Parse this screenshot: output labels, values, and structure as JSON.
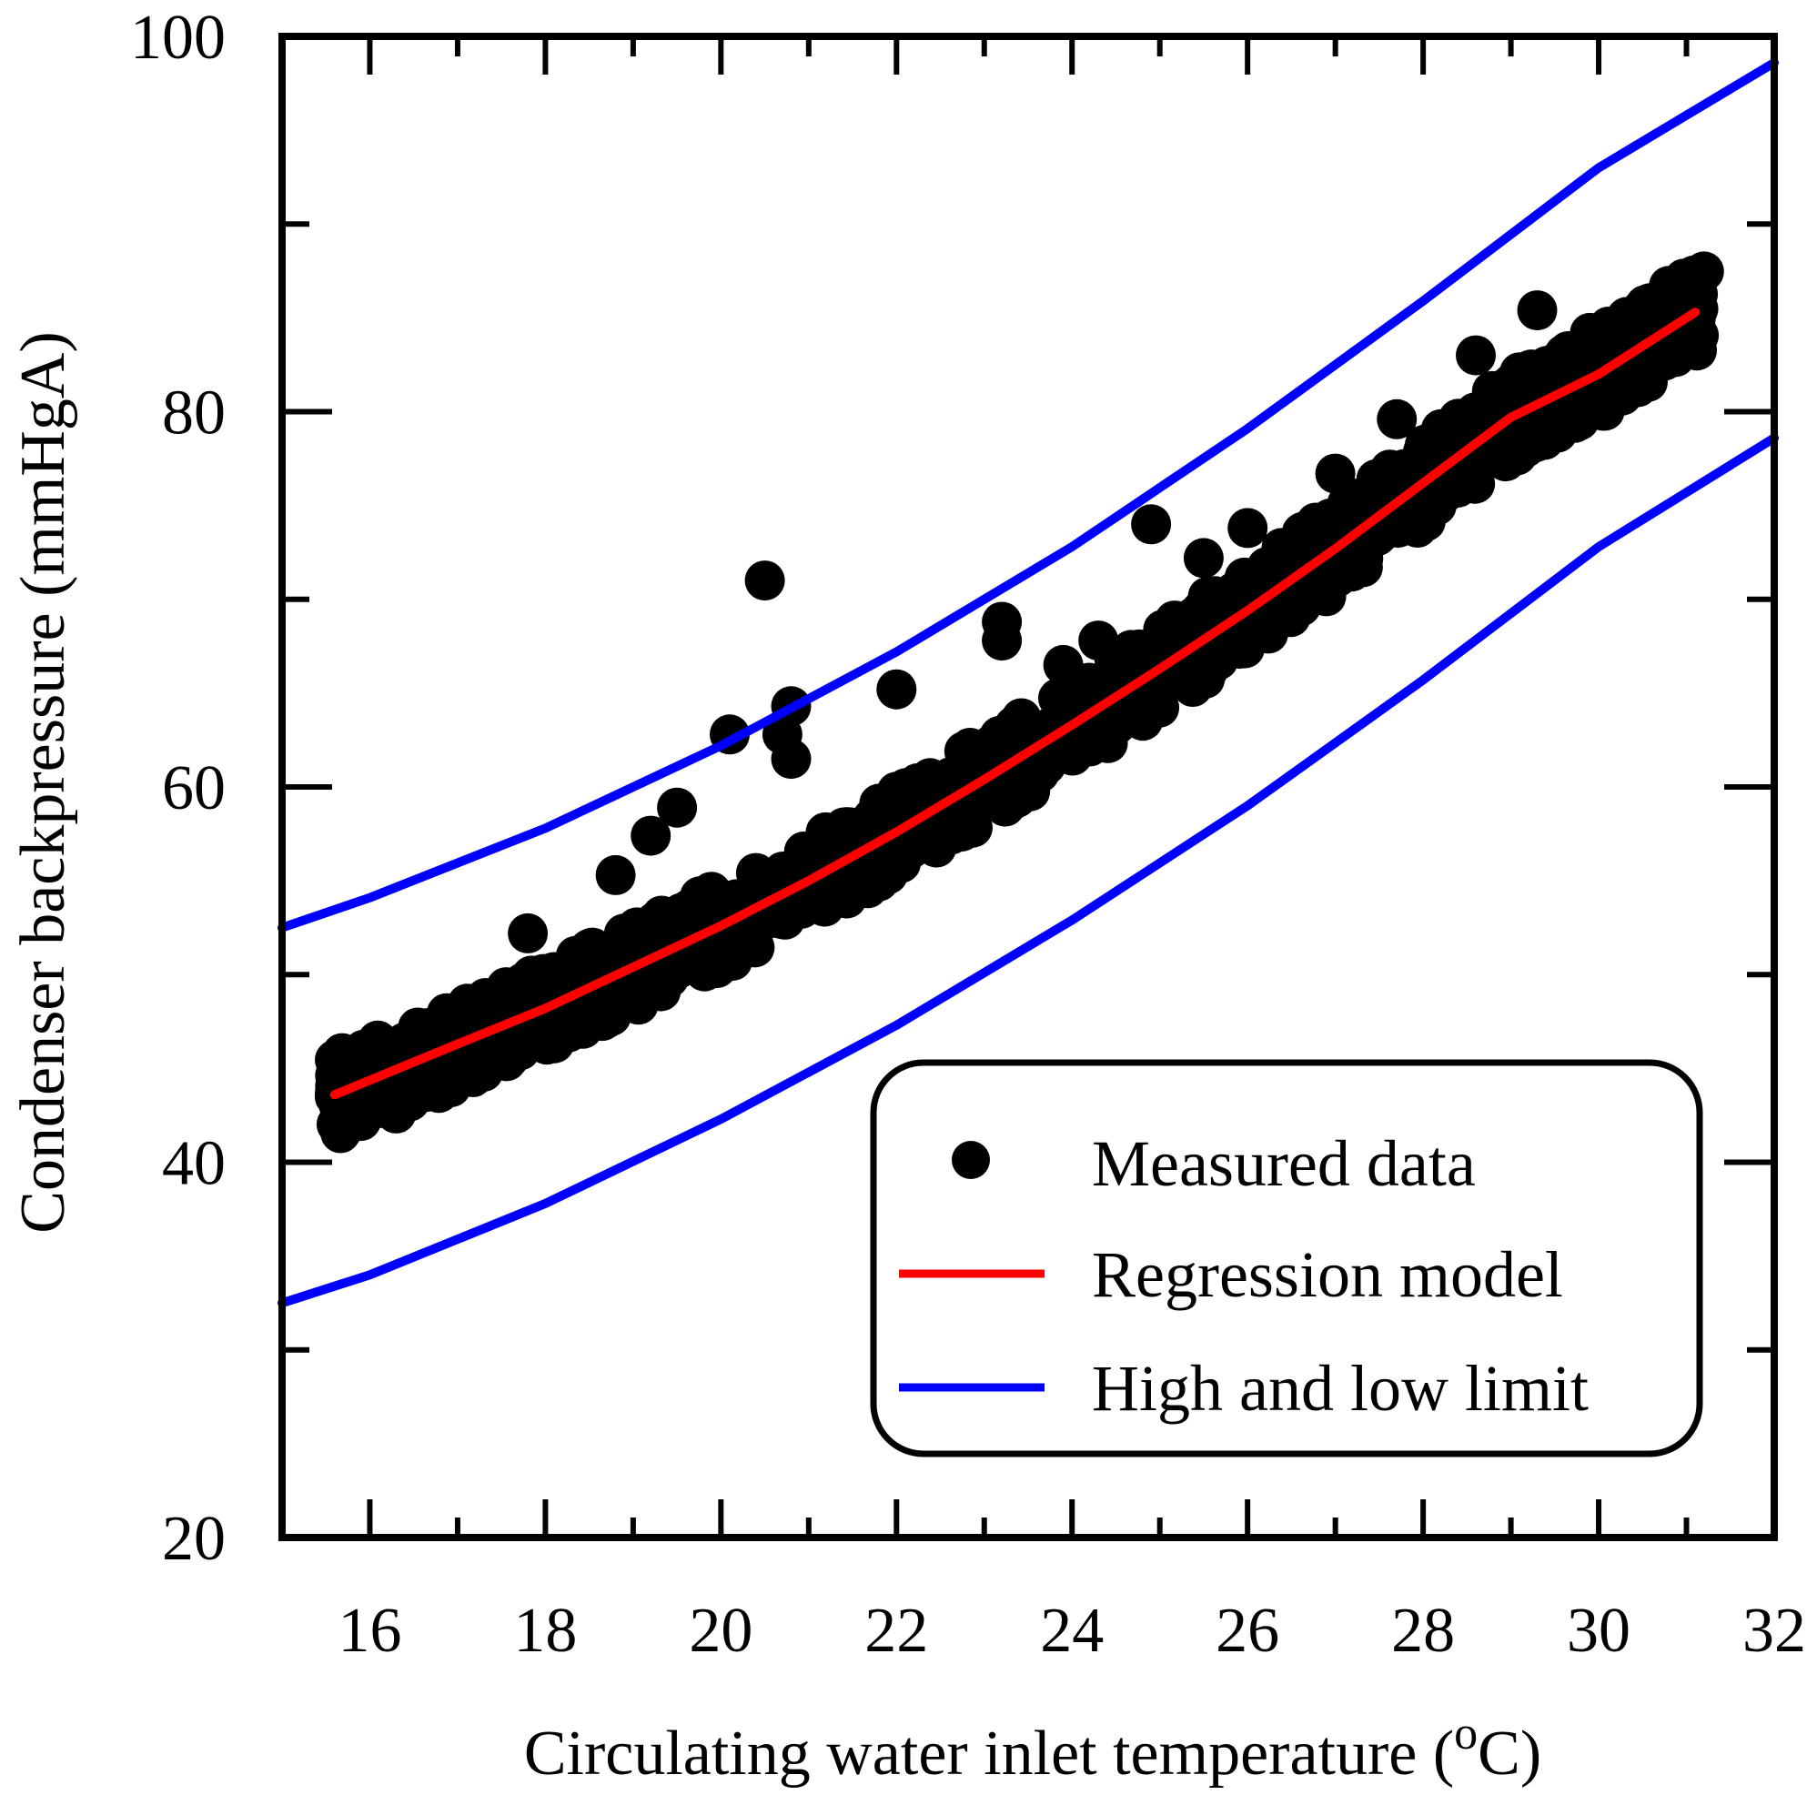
{
  "chart_data": {
    "type": "scatter",
    "title": "",
    "xlabel": "Circulating water inlet temperature (",
    "xlabel_sup": "o",
    "xlabel_end": "C)",
    "ylabel": "Condenser backpressure (mmHgA)",
    "xlim": [
      15,
      32
    ],
    "ylim": [
      20,
      100
    ],
    "x_ticks": [
      16,
      18,
      20,
      22,
      24,
      26,
      28,
      30,
      32
    ],
    "y_ticks": [
      20,
      40,
      60,
      80,
      100
    ],
    "grid": false,
    "legend_position": "bottom-right",
    "series": [
      {
        "name": "Measured data",
        "kind": "scatter",
        "color": "#000000",
        "band_lo_offset": -2.2,
        "band_hi_offset": 2.2,
        "x_range": [
          15.6,
          31.2
        ],
        "n_points": 900,
        "outliers": [
          {
            "x": 20.5,
            "y": 71.0
          },
          {
            "x": 24.9,
            "y": 74.0
          },
          {
            "x": 23.2,
            "y": 68.8
          },
          {
            "x": 23.2,
            "y": 67.8
          },
          {
            "x": 22.0,
            "y": 65.2
          },
          {
            "x": 20.8,
            "y": 64.3
          },
          {
            "x": 20.1,
            "y": 62.8
          },
          {
            "x": 20.7,
            "y": 62.8
          },
          {
            "x": 20.8,
            "y": 61.5
          },
          {
            "x": 19.5,
            "y": 58.9
          },
          {
            "x": 19.2,
            "y": 57.4
          },
          {
            "x": 18.8,
            "y": 55.3
          },
          {
            "x": 17.8,
            "y": 52.2
          },
          {
            "x": 16.8,
            "y": 47.4
          },
          {
            "x": 16.1,
            "y": 45.8
          },
          {
            "x": 28.6,
            "y": 83.0
          },
          {
            "x": 29.3,
            "y": 85.4
          },
          {
            "x": 30.5,
            "y": 85.5
          },
          {
            "x": 30.8,
            "y": 86.7
          },
          {
            "x": 31.1,
            "y": 85.5
          },
          {
            "x": 29.9,
            "y": 84.2
          },
          {
            "x": 29.1,
            "y": 82.1
          },
          {
            "x": 27.7,
            "y": 79.6
          },
          {
            "x": 27.0,
            "y": 76.7
          },
          {
            "x": 26.0,
            "y": 73.8
          },
          {
            "x": 25.5,
            "y": 72.2
          },
          {
            "x": 24.3,
            "y": 67.8
          },
          {
            "x": 23.9,
            "y": 66.5
          },
          {
            "x": 30.2,
            "y": 81.3
          },
          {
            "x": 29.9,
            "y": 80.1
          },
          {
            "x": 15.6,
            "y": 43.5
          },
          {
            "x": 15.9,
            "y": 42.2
          },
          {
            "x": 16.3,
            "y": 42.6
          }
        ]
      },
      {
        "name": "Regression model",
        "kind": "line",
        "color": "#ff0000",
        "points": [
          {
            "x": 15.6,
            "y": 43.6
          },
          {
            "x": 17.0,
            "y": 46.3
          },
          {
            "x": 18.0,
            "y": 48.2
          },
          {
            "x": 19.0,
            "y": 50.4
          },
          {
            "x": 20.0,
            "y": 52.6
          },
          {
            "x": 21.0,
            "y": 55.0
          },
          {
            "x": 22.0,
            "y": 57.6
          },
          {
            "x": 23.0,
            "y": 60.4
          },
          {
            "x": 24.0,
            "y": 63.3
          },
          {
            "x": 25.0,
            "y": 66.3
          },
          {
            "x": 26.0,
            "y": 69.4
          },
          {
            "x": 27.0,
            "y": 72.7
          },
          {
            "x": 28.0,
            "y": 76.2
          },
          {
            "x": 29.0,
            "y": 79.7
          },
          {
            "x": 30.0,
            "y": 82.0
          },
          {
            "x": 31.1,
            "y": 85.3
          }
        ]
      },
      {
        "name": "High and low limit",
        "kind": "line",
        "color": "#0000ff",
        "points": [
          {
            "x": 15.0,
            "y": 52.5
          },
          {
            "x": 16.0,
            "y": 54.1
          },
          {
            "x": 18.0,
            "y": 57.8
          },
          {
            "x": 20.0,
            "y": 62.2
          },
          {
            "x": 22.0,
            "y": 67.2
          },
          {
            "x": 24.0,
            "y": 72.8
          },
          {
            "x": 26.0,
            "y": 79.1
          },
          {
            "x": 28.0,
            "y": 85.9
          },
          {
            "x": 30.0,
            "y": 93.0
          },
          {
            "x": 32.0,
            "y": 98.6
          }
        ]
      },
      {
        "name": "Low limit",
        "kind": "line",
        "color": "#0000ff",
        "in_legend": false,
        "points": [
          {
            "x": 15.0,
            "y": 32.5
          },
          {
            "x": 16.0,
            "y": 34.0
          },
          {
            "x": 18.0,
            "y": 37.8
          },
          {
            "x": 20.0,
            "y": 42.3
          },
          {
            "x": 22.0,
            "y": 47.3
          },
          {
            "x": 24.0,
            "y": 52.9
          },
          {
            "x": 26.0,
            "y": 59.0
          },
          {
            "x": 28.0,
            "y": 65.7
          },
          {
            "x": 30.0,
            "y": 72.8
          },
          {
            "x": 32.0,
            "y": 78.6
          }
        ]
      }
    ]
  }
}
